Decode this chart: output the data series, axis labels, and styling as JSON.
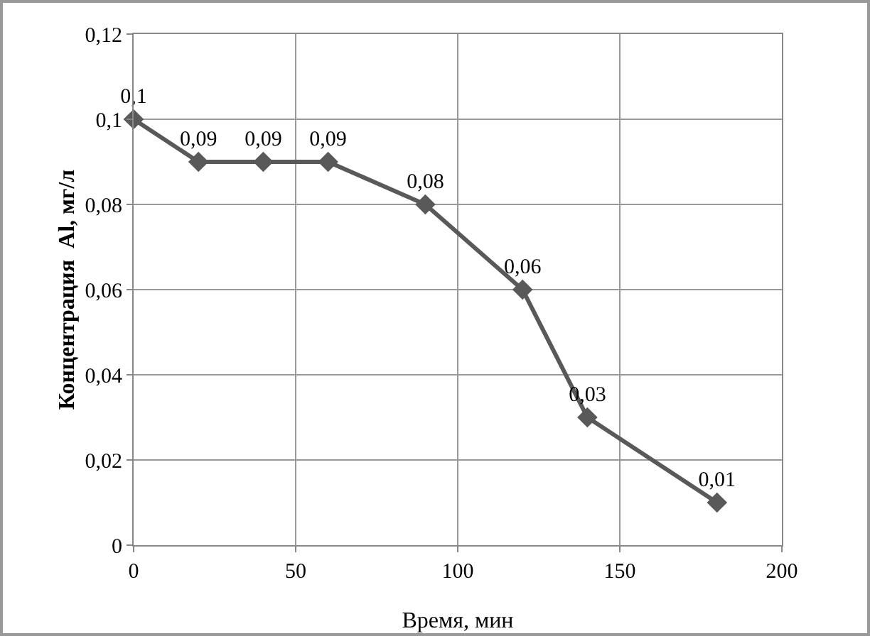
{
  "chart_data": {
    "type": "line",
    "xlabel": "Время, мин",
    "ylabel": "Концентрация  Al, мг/л",
    "x": [
      0,
      20,
      40,
      60,
      90,
      120,
      140,
      180
    ],
    "series": [
      {
        "color": "#595959",
        "values": [
          0.1,
          0.09,
          0.09,
          0.09,
          0.08,
          0.06,
          0.03,
          0.01
        ],
        "value_labels": [
          "0,1",
          "0,09",
          "0,09",
          "0,09",
          "0,08",
          "0,06",
          "0,03",
          "0,01"
        ]
      }
    ],
    "xlim": [
      0,
      200
    ],
    "xticks": [
      0,
      50,
      100,
      150,
      200
    ],
    "ylim": [
      0,
      0.12
    ],
    "yticks": [
      0,
      {
        "value": 0.02,
        "label": "0,02"
      },
      {
        "value": 0.04,
        "label": "0,04"
      },
      {
        "value": 0.06,
        "label": "0,06"
      },
      {
        "value": 0.08,
        "label": "0,08"
      },
      {
        "value": 0.1,
        "label": "0,1"
      },
      {
        "value": 0.12,
        "label": "0,12"
      }
    ],
    "grid": true,
    "marker": "diamond",
    "line_style": "solid",
    "legend": false
  }
}
